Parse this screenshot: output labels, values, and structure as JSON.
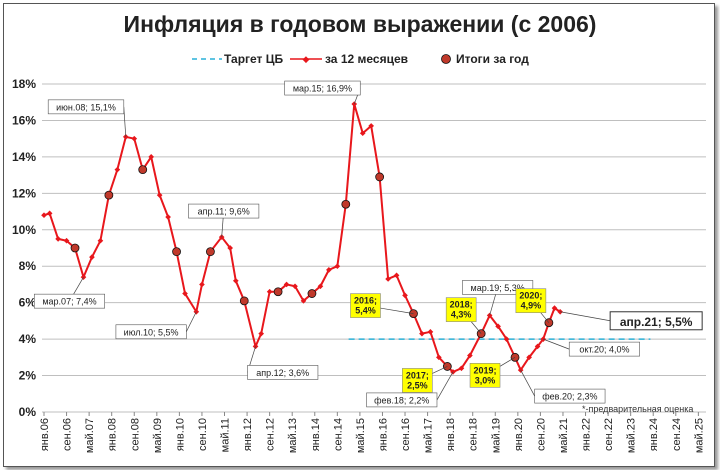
{
  "chart_data": {
    "type": "line",
    "title": "Инфляция в годовом выражении (с 2006)",
    "ylim": [
      0,
      18
    ],
    "y_ticks": [
      "0%",
      "2%",
      "4%",
      "6%",
      "8%",
      "10%",
      "12%",
      "14%",
      "16%",
      "18%"
    ],
    "x_ticks": [
      "янв.06",
      "сен.06",
      "май.07",
      "янв.08",
      "сен.08",
      "май.09",
      "янв.10",
      "сен.10",
      "май.11",
      "янв.12",
      "сен.12",
      "май.13",
      "янв.14",
      "сен.14",
      "май.15",
      "янв.16",
      "сен.16",
      "май.17",
      "янв.18",
      "сен.18",
      "май.19",
      "янв.20",
      "сен.20",
      "май.21",
      "янв.22",
      "сен.22",
      "май.23",
      "янв.24",
      "сен.24",
      "май.25"
    ],
    "grid": true,
    "legend_position": "top",
    "legend": {
      "target": "Таргет ЦБ",
      "monthly": "за 12 месяцев",
      "yearly": "Итоги за год"
    },
    "colors": {
      "line": "#e8171c",
      "target": "#2ab0d8",
      "yearly_fill": "#c0392b",
      "callout_fill": "#ffff00"
    },
    "target_value": 4.0,
    "target_range": [
      "янв.15",
      "дек.23"
    ],
    "series": [
      {
        "name": "за 12 месяцев",
        "x": [
          "янв.06",
          "мар.06",
          "июн.06",
          "сен.06",
          "дек.06",
          "мар.07",
          "июн.07",
          "сен.07",
          "дек.07",
          "мар.08",
          "июн.08",
          "сен.08",
          "дек.08",
          "мар.09",
          "июн.09",
          "сен.09",
          "дек.09",
          "мар.10",
          "июл.10",
          "сен.10",
          "дек.10",
          "апр.11",
          "июл.11",
          "сен.11",
          "дек.11",
          "апр.12",
          "июн.12",
          "сен.12",
          "дек.12",
          "мар.13",
          "июн.13",
          "сен.13",
          "дек.13",
          "мар.14",
          "июн.14",
          "сен.14",
          "дек.14",
          "мар.15",
          "июн.15",
          "сен.15",
          "дек.15",
          "мар.16",
          "июн.16",
          "сен.16",
          "дек.16",
          "мар.17",
          "июн.17",
          "сен.17",
          "дек.17",
          "фев.18",
          "май.18",
          "авг.18",
          "дек.18",
          "мар.19",
          "июн.19",
          "сен.19",
          "дек.19",
          "фев.20",
          "май.20",
          "авг.20",
          "окт.20",
          "дек.20",
          "фев.21",
          "апр.21"
        ],
        "y": [
          10.8,
          10.9,
          9.5,
          9.4,
          9.0,
          7.4,
          8.5,
          9.4,
          11.9,
          13.3,
          15.1,
          15.0,
          13.3,
          14.0,
          11.9,
          10.7,
          8.8,
          6.5,
          5.5,
          7.0,
          8.8,
          9.6,
          9.0,
          7.2,
          6.1,
          3.6,
          4.3,
          6.6,
          6.6,
          7.0,
          6.9,
          6.1,
          6.5,
          6.9,
          7.8,
          8.0,
          11.4,
          16.9,
          15.3,
          15.7,
          12.9,
          7.3,
          7.5,
          6.4,
          5.4,
          4.3,
          4.4,
          3.0,
          2.5,
          2.2,
          2.4,
          3.1,
          4.3,
          5.3,
          4.7,
          4.0,
          3.0,
          2.3,
          3.0,
          3.6,
          4.0,
          4.9,
          5.7,
          5.5
        ]
      },
      {
        "name": "Итоги за год",
        "x": [
          "дек.06",
          "дек.07",
          "дек.08",
          "дек.09",
          "дек.10",
          "дек.11",
          "дек.12",
          "дек.13",
          "дек.14",
          "дек.15",
          "дек.16",
          "дек.17",
          "дек.18",
          "дек.19",
          "дек.20"
        ],
        "y": [
          9.0,
          11.9,
          13.3,
          8.8,
          8.8,
          6.1,
          6.6,
          6.5,
          11.4,
          12.9,
          5.4,
          2.5,
          4.3,
          3.0,
          4.9
        ]
      }
    ],
    "annotations": [
      {
        "x": "июн.08",
        "y": 15.1,
        "text": "июн.08; 15,1%"
      },
      {
        "x": "мар.07",
        "y": 7.4,
        "text": "мар.07; 7,4%"
      },
      {
        "x": "июл.10",
        "y": 5.5,
        "text": "июл.10; 5,5%"
      },
      {
        "x": "апр.11",
        "y": 9.6,
        "text": "апр.11; 9,6%"
      },
      {
        "x": "апр.12",
        "y": 3.6,
        "text": "апр.12; 3,6%"
      },
      {
        "x": "мар.15",
        "y": 16.9,
        "text": "мар.15; 16,9%"
      },
      {
        "x": "фев.18",
        "y": 2.2,
        "text": "фев.18; 2,2%"
      },
      {
        "x": "мар.19",
        "y": 5.3,
        "text": "мар.19; 5,3%"
      },
      {
        "x": "окт.20",
        "y": 4.0,
        "text": "окт.20; 4,0%"
      },
      {
        "x": "фев.20",
        "y": 2.3,
        "text": "фев.20; 2,3%"
      },
      {
        "x": "апр.21",
        "y": 5.5,
        "text": "апр.21; 5,5%"
      }
    ],
    "yearly_callouts": [
      {
        "x": "дек.16",
        "y": 5.4,
        "line1": "2016;",
        "line2": "5,4%"
      },
      {
        "x": "дек.17",
        "y": 2.5,
        "line1": "2017;",
        "line2": "2,5%"
      },
      {
        "x": "дек.18",
        "y": 4.3,
        "line1": "2018;",
        "line2": "4,3%"
      },
      {
        "x": "дек.19",
        "y": 3.0,
        "line1": "2019;",
        "line2": "3,0%"
      },
      {
        "x": "дек.20",
        "y": 4.9,
        "line1": "2020;",
        "line2": "4,9%"
      }
    ],
    "footnote": "*-предварительная оценка"
  }
}
